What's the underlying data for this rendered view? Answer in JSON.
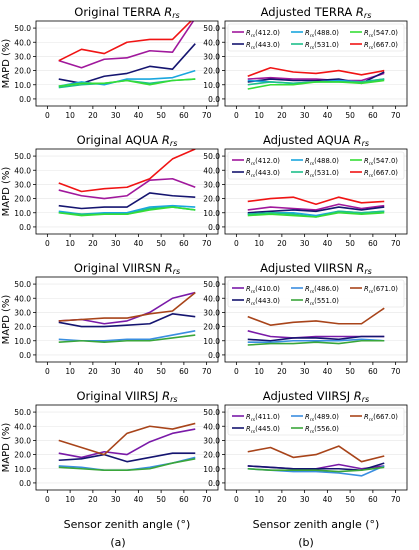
{
  "figure": {
    "xlabel": "Sensor zenith angle (°)",
    "ylabel": "MAPD (%)",
    "panel_labels": [
      "(a)",
      "(b)"
    ]
  },
  "chart_data": [
    {
      "id": "orig-terra",
      "type": "line",
      "title": "Original TERRA R_rs",
      "title_main": "Original TERRA ",
      "title_sub": "rs",
      "x": [
        5,
        15,
        25,
        35,
        45,
        55,
        65
      ],
      "xlim": [
        -5,
        75
      ],
      "ylim": [
        -5,
        55
      ],
      "xticks": [
        0,
        10,
        20,
        30,
        40,
        50,
        60,
        70
      ],
      "yticks": [
        0,
        10,
        20,
        30,
        40,
        50
      ],
      "series": [
        {
          "name": "R_rs(412.0)",
          "color": "#a0189c",
          "values": [
            27,
            22,
            28,
            29,
            34,
            33,
            57
          ]
        },
        {
          "name": "R_rs(443.0)",
          "color": "#151570",
          "values": [
            14,
            11,
            16,
            18,
            23,
            21,
            39
          ]
        },
        {
          "name": "R_rs(488.0)",
          "color": "#1aa6de",
          "values": [
            9,
            12,
            10,
            14,
            14,
            15,
            20
          ]
        },
        {
          "name": "R_rs(531.0)",
          "color": "#1ec08a",
          "values": [
            8,
            10,
            11,
            13,
            11,
            13,
            14
          ]
        },
        {
          "name": "R_rs(547.0)",
          "color": "#36dd36",
          "values": [
            9,
            11,
            11,
            13,
            10,
            13,
            14
          ]
        },
        {
          "name": "R_rs(667.0)",
          "color": "#f01414",
          "values": [
            27,
            35,
            32,
            40,
            42,
            42,
            58
          ]
        }
      ]
    },
    {
      "id": "adj-terra",
      "type": "line",
      "title": "Adjusted TERRA R_rs",
      "title_main": "Adjusted TERRA ",
      "title_sub": "rs",
      "x": [
        5,
        15,
        25,
        35,
        45,
        55,
        65
      ],
      "xlim": [
        -5,
        75
      ],
      "ylim": [
        -5,
        55
      ],
      "xticks": [
        0,
        10,
        20,
        30,
        40,
        50,
        60,
        70
      ],
      "yticks": [
        0,
        10,
        20,
        30,
        40,
        50
      ],
      "legend": {
        "order": [
          "R_rs(412.0)",
          "R_rs(488.0)",
          "R_rs(547.0)",
          "R_rs(443.0)",
          "R_rs(531.0)",
          "R_rs(667.0)"
        ]
      },
      "series": [
        {
          "name": "R_rs(412.0)",
          "color": "#a0189c",
          "values": [
            14,
            15,
            14,
            14,
            13,
            13,
            18
          ]
        },
        {
          "name": "R_rs(443.0)",
          "color": "#151570",
          "values": [
            12,
            14,
            13,
            13,
            14,
            11,
            19
          ]
        },
        {
          "name": "R_rs(488.0)",
          "color": "#1aa6de",
          "values": [
            13,
            12,
            11,
            12,
            13,
            12,
            14
          ]
        },
        {
          "name": "R_rs(531.0)",
          "color": "#1ec08a",
          "values": [
            10,
            12,
            11,
            12,
            12,
            12,
            14
          ]
        },
        {
          "name": "R_rs(547.0)",
          "color": "#36dd36",
          "values": [
            7,
            10,
            10,
            12,
            12,
            11,
            13
          ]
        },
        {
          "name": "R_rs(667.0)",
          "color": "#f01414",
          "values": [
            16,
            22,
            19,
            18,
            20,
            17,
            20
          ]
        }
      ]
    },
    {
      "id": "orig-aqua",
      "type": "line",
      "title": "Original AQUA R_rs",
      "title_main": "Original AQUA ",
      "title_sub": "rs",
      "x": [
        5,
        15,
        25,
        35,
        45,
        55,
        65
      ],
      "xlim": [
        -5,
        75
      ],
      "ylim": [
        -5,
        55
      ],
      "xticks": [
        0,
        10,
        20,
        30,
        40,
        50,
        60,
        70
      ],
      "yticks": [
        0,
        10,
        20,
        30,
        40,
        50
      ],
      "series": [
        {
          "name": "R_rs(412.0)",
          "color": "#a0189c",
          "values": [
            26,
            22,
            20,
            22,
            33,
            34,
            28
          ]
        },
        {
          "name": "R_rs(443.0)",
          "color": "#151570",
          "values": [
            15,
            13,
            14,
            14,
            24,
            22,
            21
          ]
        },
        {
          "name": "R_rs(488.0)",
          "color": "#1aa6de",
          "values": [
            11,
            9,
            10,
            10,
            14,
            15,
            14
          ]
        },
        {
          "name": "R_rs(531.0)",
          "color": "#1ec08a",
          "values": [
            10,
            9,
            9,
            9,
            13,
            14,
            12
          ]
        },
        {
          "name": "R_rs(547.0)",
          "color": "#36dd36",
          "values": [
            10,
            8,
            9,
            9,
            12,
            14,
            12
          ]
        },
        {
          "name": "R_rs(667.0)",
          "color": "#f01414",
          "values": [
            31,
            25,
            27,
            28,
            34,
            48,
            55
          ]
        }
      ]
    },
    {
      "id": "adj-aqua",
      "type": "line",
      "title": "Adjusted AQUA R_rs",
      "title_main": "Adjusted AQUA ",
      "title_sub": "rs",
      "x": [
        5,
        15,
        25,
        35,
        45,
        55,
        65
      ],
      "xlim": [
        -5,
        75
      ],
      "ylim": [
        -5,
        55
      ],
      "xticks": [
        0,
        10,
        20,
        30,
        40,
        50,
        60,
        70
      ],
      "yticks": [
        0,
        10,
        20,
        30,
        40,
        50
      ],
      "legend": {
        "order": [
          "R_rs(412.0)",
          "R_rs(488.0)",
          "R_rs(547.0)",
          "R_rs(443.0)",
          "R_rs(531.0)",
          "R_rs(667.0)"
        ]
      },
      "series": [
        {
          "name": "R_rs(412.0)",
          "color": "#a0189c",
          "values": [
            12,
            14,
            13,
            12,
            16,
            13,
            15
          ]
        },
        {
          "name": "R_rs(443.0)",
          "color": "#151570",
          "values": [
            10,
            11,
            12,
            11,
            14,
            12,
            14
          ]
        },
        {
          "name": "R_rs(488.0)",
          "color": "#1aa6de",
          "values": [
            9,
            10,
            10,
            8,
            11,
            10,
            11
          ]
        },
        {
          "name": "R_rs(531.0)",
          "color": "#1ec08a",
          "values": [
            9,
            10,
            9,
            7,
            11,
            10,
            11
          ]
        },
        {
          "name": "R_rs(547.0)",
          "color": "#36dd36",
          "values": [
            8,
            9,
            8,
            7,
            10,
            9,
            10
          ]
        },
        {
          "name": "R_rs(667.0)",
          "color": "#f01414",
          "values": [
            18,
            20,
            21,
            16,
            21,
            17,
            18
          ]
        }
      ]
    },
    {
      "id": "orig-viirsn",
      "type": "line",
      "title": "Original VIIRSN R_rs",
      "title_main": "Original VIIRSN ",
      "title_sub": "rs",
      "x": [
        5,
        15,
        25,
        35,
        45,
        55,
        65
      ],
      "xlim": [
        -5,
        75
      ],
      "ylim": [
        -5,
        55
      ],
      "xticks": [
        0,
        10,
        20,
        30,
        40,
        50,
        60,
        70
      ],
      "yticks": [
        0,
        10,
        20,
        30,
        40,
        50
      ],
      "series": [
        {
          "name": "R_rs(410.0)",
          "color": "#7a1aa8",
          "values": [
            24,
            25,
            22,
            24,
            30,
            40,
            44
          ]
        },
        {
          "name": "R_rs(443.0)",
          "color": "#151570",
          "values": [
            23,
            20,
            20,
            21,
            22,
            29,
            27
          ]
        },
        {
          "name": "R_rs(486.0)",
          "color": "#3a8ee0",
          "values": [
            11,
            10,
            10,
            11,
            11,
            14,
            17
          ]
        },
        {
          "name": "R_rs(551.0)",
          "color": "#3aa63a",
          "values": [
            9,
            10,
            9,
            10,
            10,
            12,
            14
          ]
        },
        {
          "name": "R_rs(671.0)",
          "color": "#a8441a",
          "values": [
            24,
            25,
            26,
            26,
            29,
            31,
            44
          ]
        }
      ]
    },
    {
      "id": "adj-viirsn",
      "type": "line",
      "title": "Adjusted VIIRSN R_rs",
      "title_main": "Adjusted VIIRSN ",
      "title_sub": "rs",
      "x": [
        5,
        15,
        25,
        35,
        45,
        55,
        65
      ],
      "xlim": [
        -5,
        75
      ],
      "ylim": [
        -5,
        55
      ],
      "xticks": [
        0,
        10,
        20,
        30,
        40,
        50,
        60,
        70
      ],
      "yticks": [
        0,
        10,
        20,
        30,
        40,
        50
      ],
      "legend": {
        "order": [
          "R_rs(410.0)",
          "R_rs(486.0)",
          "R_rs(671.0)",
          "R_rs(443.0)",
          "R_rs(551.0)"
        ]
      },
      "series": [
        {
          "name": "R_rs(410.0)",
          "color": "#7a1aa8",
          "values": [
            17,
            13,
            12,
            13,
            13,
            13,
            13
          ]
        },
        {
          "name": "R_rs(443.0)",
          "color": "#151570",
          "values": [
            11,
            10,
            12,
            12,
            11,
            13,
            13
          ]
        },
        {
          "name": "R_rs(486.0)",
          "color": "#3a8ee0",
          "values": [
            9,
            9,
            10,
            10,
            10,
            11,
            10
          ]
        },
        {
          "name": "R_rs(551.0)",
          "color": "#3aa63a",
          "values": [
            7,
            8,
            8,
            9,
            8,
            10,
            10
          ]
        },
        {
          "name": "R_rs(671.0)",
          "color": "#a8441a",
          "values": [
            27,
            21,
            23,
            24,
            22,
            22,
            33
          ]
        }
      ]
    },
    {
      "id": "orig-viirsj",
      "type": "line",
      "title": "Original VIIRSJ R_rs",
      "title_main": "Original VIIRSJ ",
      "title_sub": "rs",
      "x": [
        5,
        15,
        25,
        35,
        45,
        55,
        65
      ],
      "xlim": [
        -5,
        75
      ],
      "ylim": [
        -5,
        55
      ],
      "xticks": [
        0,
        10,
        20,
        30,
        40,
        50,
        60,
        70
      ],
      "yticks": [
        0,
        10,
        20,
        30,
        40,
        50
      ],
      "series": [
        {
          "name": "R_rs(411.0)",
          "color": "#7a1aa8",
          "values": [
            21,
            18,
            22,
            20,
            29,
            35,
            38
          ]
        },
        {
          "name": "R_rs(445.0)",
          "color": "#151570",
          "values": [
            16,
            17,
            20,
            15,
            18,
            21,
            21
          ]
        },
        {
          "name": "R_rs(489.0)",
          "color": "#3a8ee0",
          "values": [
            12,
            11,
            9,
            9,
            11,
            14,
            18
          ]
        },
        {
          "name": "R_rs(556.0)",
          "color": "#3aa63a",
          "values": [
            11,
            10,
            9,
            9,
            10,
            14,
            17
          ]
        },
        {
          "name": "R_rs(667.0)",
          "color": "#a8441a",
          "values": [
            30,
            25,
            20,
            35,
            40,
            38,
            42
          ]
        }
      ]
    },
    {
      "id": "adj-viirsj",
      "type": "line",
      "title": "Adjusted VIIRSJ R_rs",
      "title_main": "Adjusted VIIRSJ ",
      "title_sub": "rs",
      "x": [
        5,
        15,
        25,
        35,
        45,
        55,
        65
      ],
      "xlim": [
        -5,
        75
      ],
      "ylim": [
        -5,
        55
      ],
      "xticks": [
        0,
        10,
        20,
        30,
        40,
        50,
        60,
        70
      ],
      "yticks": [
        0,
        10,
        20,
        30,
        40,
        50
      ],
      "legend": {
        "order": [
          "R_rs(411.0)",
          "R_rs(489.0)",
          "R_rs(667.0)",
          "R_rs(445.0)",
          "R_rs(556.0)"
        ]
      },
      "series": [
        {
          "name": "R_rs(411.0)",
          "color": "#7a1aa8",
          "values": [
            12,
            11,
            10,
            10,
            13,
            10,
            12
          ]
        },
        {
          "name": "R_rs(445.0)",
          "color": "#151570",
          "values": [
            12,
            11,
            10,
            10,
            10,
            9,
            14
          ]
        },
        {
          "name": "R_rs(489.0)",
          "color": "#3a8ee0",
          "values": [
            10,
            9,
            8,
            8,
            7,
            5,
            12
          ]
        },
        {
          "name": "R_rs(556.0)",
          "color": "#3aa63a",
          "values": [
            10,
            9,
            9,
            9,
            8,
            9,
            11
          ]
        },
        {
          "name": "R_rs(667.0)",
          "color": "#a8441a",
          "values": [
            22,
            25,
            18,
            20,
            26,
            15,
            19
          ]
        }
      ]
    }
  ]
}
